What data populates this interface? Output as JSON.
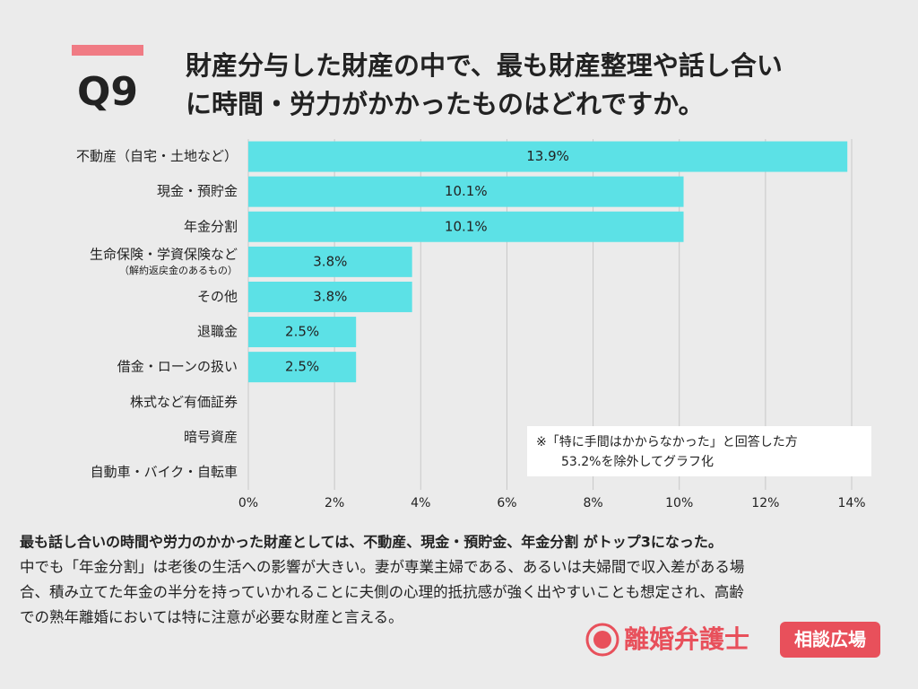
{
  "chart_data": {
    "type": "hbar",
    "question": "Q9",
    "title_lines": [
      "財産分与した財産の中で、最も財産整理や話し合い",
      "に時間・労力がかかったものはどれですか。"
    ],
    "categories": [
      "不動産（自宅・土地など）",
      "現金・預貯金",
      "年金分割",
      "生命保険・学資保険など",
      "その他",
      "退職金",
      "借金・ローンの扱い",
      "株式など有価証券",
      "暗号資産",
      "自動車・バイク・自転車"
    ],
    "category_sublabels": [
      null,
      null,
      null,
      "（解約返戻金のあるもの）",
      null,
      null,
      null,
      null,
      null,
      null
    ],
    "values": [
      13.9,
      10.1,
      10.1,
      3.8,
      3.8,
      2.5,
      2.5,
      0,
      0,
      0
    ],
    "value_labels": [
      "13.9%",
      "10.1%",
      "10.1%",
      "3.8%",
      "3.8%",
      "2.5%",
      "2.5%",
      null,
      null,
      null
    ],
    "color": "#5ce1e6",
    "xlim": [
      0,
      14
    ],
    "xticks": [
      {
        "value": 0,
        "label": "0%"
      },
      {
        "value": 2,
        "label": "2%"
      },
      {
        "value": 4,
        "label": "4%"
      },
      {
        "value": 6,
        "label": "6%"
      },
      {
        "value": 8,
        "label": "8%"
      },
      {
        "value": 10,
        "label": "10%"
      },
      {
        "value": 12,
        "label": "12%"
      },
      {
        "value": 14,
        "label": "14%"
      }
    ],
    "grid": true,
    "note_lines": [
      "※「特に手間はかからなかった」と回答した方",
      "53.2%を除外してグラフ化"
    ]
  },
  "footer": {
    "summary": "最も話し合いの時間や労力のかかった財産としては、不動産、現金・預貯金、年金分割 がトップ3になった。",
    "body": [
      "中でも「年金分割」は老後の生活への影響が大きい。妻が専業主婦である、あるいは夫婦間で収入差がある場",
      "合、積み立てた年金の半分を持っていかれることに夫側の心理的抵抗感が強く出やすいことも想定され、高齢",
      "での熟年離婚においては特に注意が必要な財産と言える。"
    ]
  },
  "brand": {
    "name": "離婚弁護士",
    "tag": "相談広場"
  }
}
